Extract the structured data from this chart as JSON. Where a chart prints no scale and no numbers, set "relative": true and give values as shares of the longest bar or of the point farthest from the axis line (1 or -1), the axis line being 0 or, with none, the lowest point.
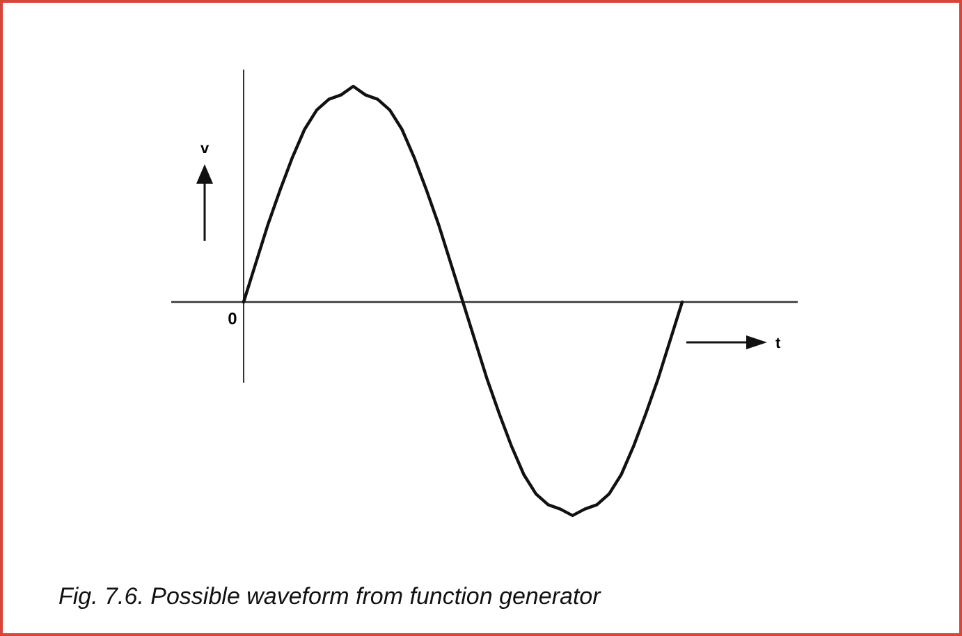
{
  "chart_data": {
    "type": "line",
    "relative": true,
    "categories": [
      null,
      null,
      null,
      null,
      null,
      null,
      null,
      null,
      null,
      null,
      null,
      null,
      null,
      null,
      null,
      null,
      null,
      null,
      null,
      null,
      null,
      null,
      null,
      null,
      null,
      null,
      null,
      null,
      null,
      null,
      null,
      null,
      null,
      null,
      null,
      null,
      null
    ],
    "series": [
      {
        "color": "#111111",
        "values": [
          0,
          0.18,
          0.36,
          0.52,
          0.67,
          0.8,
          0.89,
          0.94,
          0.96,
          1,
          0.96,
          0.94,
          0.89,
          0.8,
          0.67,
          0.52,
          0.36,
          0.18,
          0,
          -0.18,
          -0.36,
          -0.52,
          -0.67,
          -0.8,
          -0.89,
          -0.94,
          -0.96,
          -0.99,
          -0.96,
          -0.94,
          -0.89,
          -0.8,
          -0.67,
          -0.52,
          -0.36,
          -0.18,
          0
        ]
      }
    ],
    "marker": "none",
    "line_style": "solid",
    "annotations": [
      "0",
      "v",
      "t",
      "Fig. 7.6. Possible waveform from function generator"
    ]
  }
}
